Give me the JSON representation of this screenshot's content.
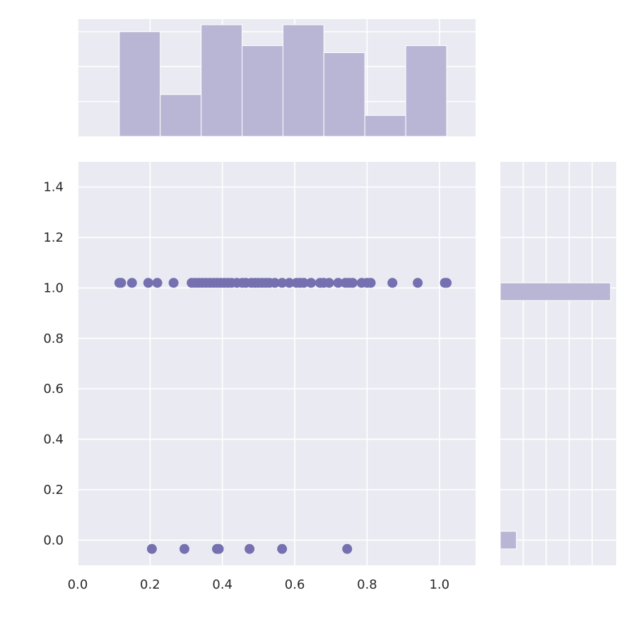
{
  "chart_data": {
    "type": "scatter",
    "title": "",
    "xlabel": "",
    "ylabel": "",
    "xlim": [
      0.0,
      1.1
    ],
    "ylim": [
      -0.1,
      1.5
    ],
    "x_ticks": [
      "0.0",
      "0.2",
      "0.4",
      "0.6",
      "0.8",
      "1.0"
    ],
    "y_ticks": [
      "0.0",
      "0.2",
      "0.4",
      "0.6",
      "0.8",
      "1.0",
      "1.2",
      "1.4"
    ],
    "grid": true,
    "colors": {
      "point": "#7570b0",
      "hist": "#b9b5d5",
      "panel": "#eaeaf2"
    },
    "series": [
      {
        "points": [
          [
            0.115,
            1.02
          ],
          [
            0.12,
            1.02
          ],
          [
            0.15,
            1.02
          ],
          [
            0.195,
            1.02
          ],
          [
            0.22,
            1.02
          ],
          [
            0.265,
            1.02
          ],
          [
            0.315,
            1.02
          ],
          [
            0.325,
            1.02
          ],
          [
            0.335,
            1.02
          ],
          [
            0.345,
            1.02
          ],
          [
            0.355,
            1.02
          ],
          [
            0.365,
            1.02
          ],
          [
            0.375,
            1.02
          ],
          [
            0.385,
            1.02
          ],
          [
            0.395,
            1.02
          ],
          [
            0.405,
            1.02
          ],
          [
            0.415,
            1.02
          ],
          [
            0.425,
            1.02
          ],
          [
            0.44,
            1.02
          ],
          [
            0.455,
            1.02
          ],
          [
            0.465,
            1.02
          ],
          [
            0.48,
            1.02
          ],
          [
            0.49,
            1.02
          ],
          [
            0.5,
            1.02
          ],
          [
            0.51,
            1.02
          ],
          [
            0.52,
            1.02
          ],
          [
            0.53,
            1.02
          ],
          [
            0.545,
            1.02
          ],
          [
            0.565,
            1.02
          ],
          [
            0.585,
            1.02
          ],
          [
            0.605,
            1.02
          ],
          [
            0.615,
            1.02
          ],
          [
            0.625,
            1.02
          ],
          [
            0.645,
            1.02
          ],
          [
            0.67,
            1.02
          ],
          [
            0.68,
            1.02
          ],
          [
            0.695,
            1.02
          ],
          [
            0.72,
            1.02
          ],
          [
            0.74,
            1.02
          ],
          [
            0.75,
            1.02
          ],
          [
            0.76,
            1.02
          ],
          [
            0.785,
            1.02
          ],
          [
            0.8,
            1.02
          ],
          [
            0.81,
            1.02
          ],
          [
            0.87,
            1.02
          ],
          [
            0.94,
            1.02
          ],
          [
            1.015,
            1.02
          ],
          [
            1.02,
            1.02
          ],
          [
            0.205,
            -0.035
          ],
          [
            0.295,
            -0.035
          ],
          [
            0.385,
            -0.035
          ],
          [
            0.39,
            -0.035
          ],
          [
            0.475,
            -0.035
          ],
          [
            0.565,
            -0.035
          ],
          [
            0.745,
            -0.035
          ]
        ]
      }
    ],
    "x_histogram": {
      "bin_edges": [
        0.115,
        0.2281,
        0.3413,
        0.4544,
        0.5675,
        0.6806,
        0.7938,
        0.9069,
        1.02
      ],
      "counts": [
        15,
        6,
        16,
        13,
        16,
        12,
        3,
        13
      ]
    },
    "y_histogram": {
      "bins": [
        {
          "start": -0.035,
          "end": 0.035,
          "count": 7
        },
        {
          "start": 0.95,
          "end": 1.02,
          "count": 48
        }
      ]
    }
  }
}
